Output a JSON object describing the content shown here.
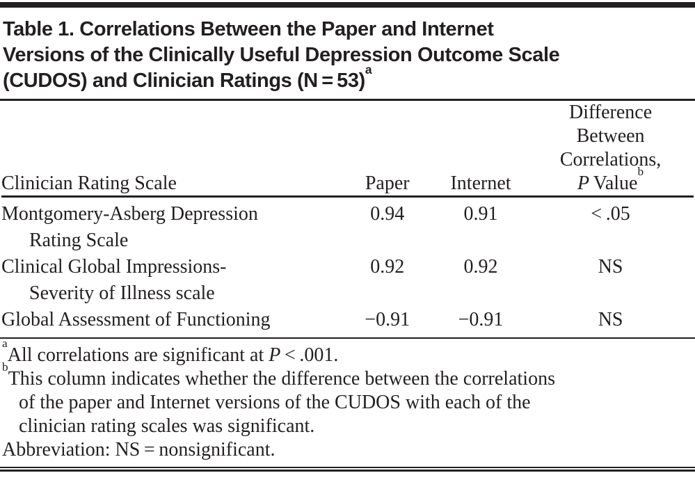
{
  "title": {
    "lines": [
      "Table 1. Correlations Between the Paper and Internet",
      "Versions of the Clinically Useful Depression Outcome Scale",
      "(CUDOS) and Clinician Ratings (N = 53)"
    ],
    "superscript": "a"
  },
  "table": {
    "headers": {
      "scale": "Clinician Rating Scale",
      "paper": "Paper",
      "internet": "Internet",
      "difference_lines": [
        "Difference",
        "Between",
        "Correlations,"
      ],
      "p_label_italic": "P",
      "p_label_rest": " Value",
      "p_superscript": "b"
    },
    "rows": [
      {
        "scale_line1": "Montgomery-Asberg Depression",
        "scale_line2": "Rating Scale",
        "paper": "0.94",
        "internet": "0.91",
        "difference_p": "< .05"
      },
      {
        "scale_line1": "Clinical Global Impressions-",
        "scale_line2": "Severity of Illness scale",
        "paper": "0.92",
        "internet": "0.92",
        "difference_p": "NS"
      },
      {
        "scale_line1": "Global Assessment of Functioning",
        "paper": "−0.91",
        "internet": "−0.91",
        "difference_p": "NS"
      }
    ]
  },
  "footnotes": {
    "a_sup": "a",
    "a_prefix": "All correlations are significant at ",
    "a_italic": "P",
    "a_suffix": " < .001.",
    "b_sup": "b",
    "b_lines": [
      "This column indicates whether the difference between the correlations",
      "of the paper and Internet versions of the CUDOS with each of the",
      "clinician rating scales was significant."
    ],
    "abbreviation": "Abbreviation: NS = nonsignificant."
  }
}
